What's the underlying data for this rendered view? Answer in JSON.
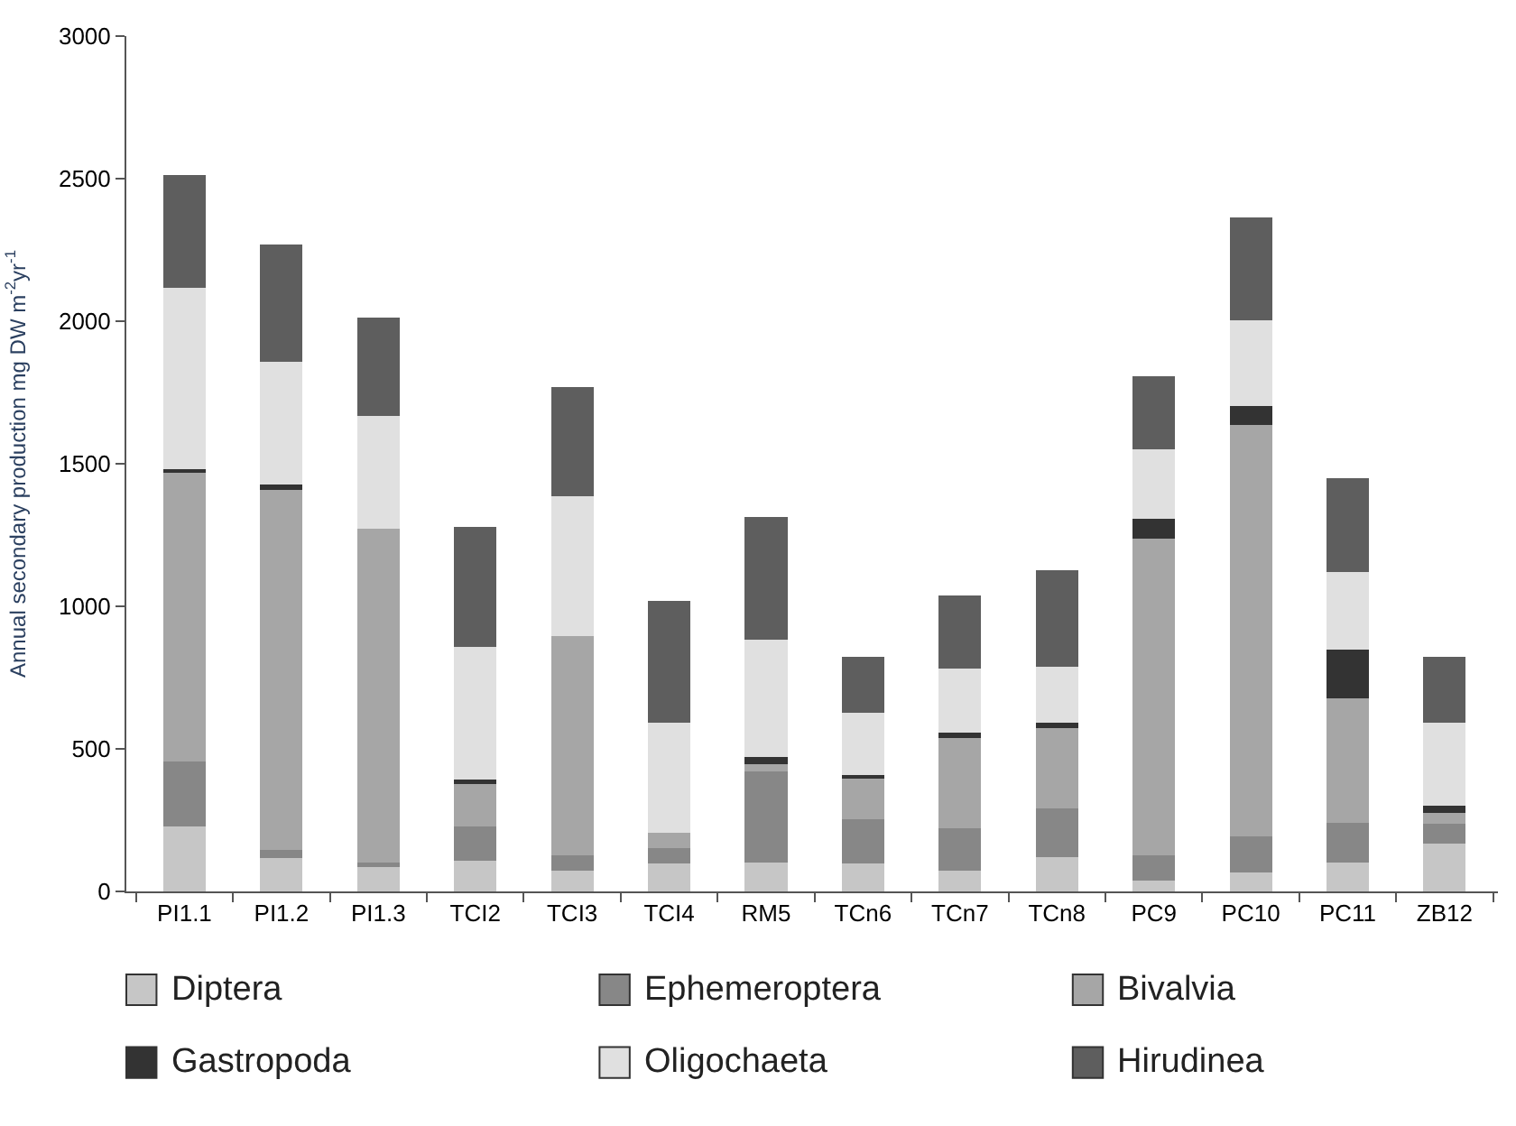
{
  "chart_data": {
    "type": "bar",
    "stacked": true,
    "ylabel": "Annual secondary production mg DW m$^{-2}$yr$^{-1}$",
    "categories": [
      "PI1.1",
      "PI1.2",
      "PI1.3",
      "TCI2",
      "TCI3",
      "TCI4",
      "RM5",
      "TCn6",
      "TCn7",
      "TCn8",
      "PC9",
      "PC10",
      "PC11",
      "ZB12"
    ],
    "series": [
      {
        "name": "Diptera",
        "color": "#c6c6c6",
        "values": [
          230,
          120,
          90,
          110,
          75,
          100,
          105,
          100,
          75,
          125,
          40,
          70,
          105,
          170
        ]
      },
      {
        "name": "Ephemeroptera",
        "color": "#878787",
        "values": [
          230,
          30,
          15,
          120,
          55,
          55,
          320,
          155,
          150,
          170,
          90,
          125,
          140,
          70
        ]
      },
      {
        "name": "Bivalvia",
        "color": "#a6a6a6",
        "values": [
          1010,
          1260,
          1170,
          150,
          770,
          55,
          25,
          145,
          315,
          280,
          1110,
          1445,
          435,
          40
        ]
      },
      {
        "name": "Gastropoda",
        "color": "#333333",
        "values": [
          15,
          20,
          0,
          15,
          0,
          0,
          25,
          10,
          20,
          20,
          70,
          65,
          170,
          25
        ]
      },
      {
        "name": "Oligochaeta",
        "color": "#e0e0e0",
        "values": [
          635,
          430,
          395,
          465,
          490,
          385,
          410,
          220,
          225,
          195,
          245,
          300,
          275,
          290
        ]
      },
      {
        "name": "Hirudinea",
        "color": "#5e5e5e",
        "values": [
          390,
          405,
          340,
          415,
          375,
          420,
          425,
          190,
          250,
          335,
          250,
          355,
          320,
          225
        ]
      }
    ],
    "ylim": [
      0,
      3000
    ],
    "yticks": [
      0,
      500,
      1000,
      1500,
      2000,
      2500,
      3000
    ],
    "legend": "bottom"
  }
}
